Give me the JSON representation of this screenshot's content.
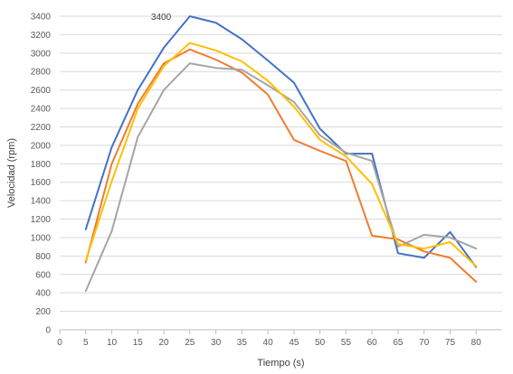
{
  "chart_data": {
    "type": "line",
    "xlabel": "Tiempo (s)",
    "ylabel": "Velocidad (rpm)",
    "xlim": [
      0,
      85
    ],
    "ylim": [
      0,
      3400
    ],
    "x_ticks": [
      0,
      5,
      10,
      15,
      20,
      25,
      30,
      35,
      40,
      45,
      50,
      55,
      60,
      65,
      70,
      75,
      80
    ],
    "y_ticks": [
      0,
      200,
      400,
      600,
      800,
      1000,
      1200,
      1400,
      1600,
      1800,
      2000,
      2200,
      2400,
      2600,
      2800,
      3000,
      3200,
      3400
    ],
    "grid": true,
    "legend": "none",
    "x": [
      5,
      10,
      15,
      20,
      25,
      30,
      35,
      40,
      45,
      50,
      55,
      60,
      65,
      70,
      75,
      80
    ],
    "series": [
      {
        "color": "#4472C4",
        "values": [
          1090,
          1980,
          2600,
          3060,
          3400,
          3330,
          3150,
          2920,
          2680,
          2180,
          1910,
          1910,
          830,
          780,
          1060,
          680
        ]
      },
      {
        "color": "#ED7D31",
        "values": [
          730,
          1800,
          2450,
          2890,
          3040,
          2930,
          2790,
          2550,
          2060,
          1940,
          1830,
          1020,
          980,
          850,
          780,
          520
        ]
      },
      {
        "color": "#A5A5A5",
        "values": [
          420,
          1070,
          2090,
          2600,
          2890,
          2840,
          2820,
          2650,
          2470,
          2110,
          1920,
          1830,
          900,
          1030,
          1000,
          880
        ]
      },
      {
        "color": "#FFC000",
        "values": [
          750,
          1610,
          2400,
          2860,
          3110,
          3030,
          2910,
          2700,
          2420,
          2060,
          1880,
          1580,
          930,
          880,
          950,
          690
        ]
      }
    ],
    "annotations": [
      {
        "text": "3400",
        "x": 20,
        "y": 3400
      }
    ]
  }
}
